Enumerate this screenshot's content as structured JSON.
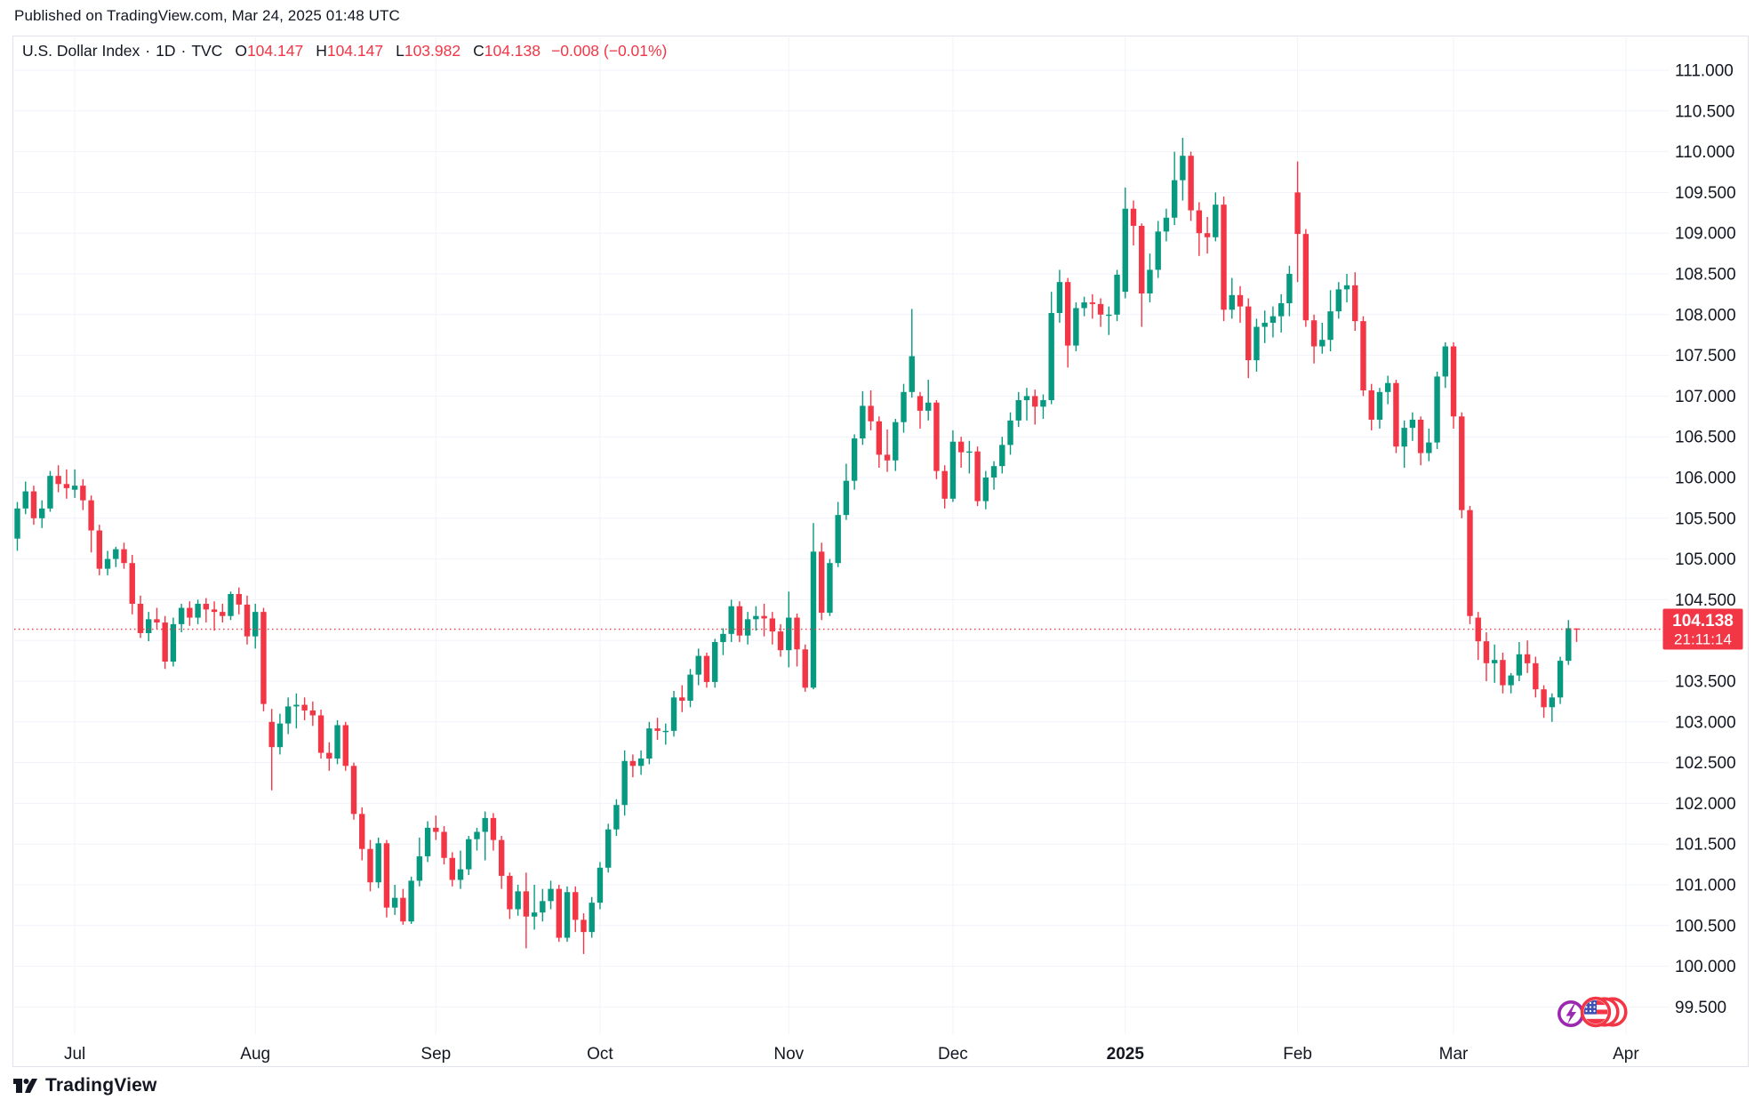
{
  "header": {
    "published": "Published on TradingView.com, Mar 24, 2025 01:48 UTC"
  },
  "legend": {
    "symbol": "U.S. Dollar Index",
    "separator": "·",
    "interval": "1D",
    "exchange": "TVC",
    "open_label": "O",
    "open_value": "104.147",
    "high_label": "H",
    "high_value": "104.147",
    "low_label": "L",
    "low_value": "103.982",
    "close_label": "C",
    "close_value": "104.138",
    "change": "−0.008 (−0.01%)"
  },
  "price_label": {
    "value": "104.138",
    "countdown": "21:11:14"
  },
  "footer": {
    "brand": "TradingView"
  },
  "colors": {
    "up": "#089981",
    "down": "#F23645",
    "current_price": "#F23645",
    "grid": "#F0F3FA",
    "border": "#E0E3EB",
    "text": "#131722",
    "label_text": "#ffffff",
    "logo_purple": "#9C27B0",
    "logo_red": "#F23645",
    "flag_blue": "#3F51B5"
  },
  "chart_data": {
    "type": "candlestick",
    "title": "U.S. Dollar Index",
    "interval": "1D",
    "exchange": "TVC",
    "x": "trading-day index starting 2024-06-20, ending 2025-03-24",
    "start_date": "2024-06-20",
    "end_date": "2025-03-24",
    "ylim": [
      99.25,
      111.4
    ],
    "grid": true,
    "legend_position": "top-left",
    "current_price": 104.138,
    "current_price_style": "dotted-red-line",
    "y_ticks": [
      "111.000",
      "110.500",
      "110.000",
      "109.500",
      "109.000",
      "108.500",
      "108.000",
      "107.500",
      "107.000",
      "106.500",
      "106.000",
      "105.500",
      "105.000",
      "104.500",
      "104.000",
      "103.500",
      "103.000",
      "102.500",
      "102.000",
      "101.500",
      "101.000",
      "100.500",
      "100.000",
      "99.500"
    ],
    "x_ticks": [
      {
        "label": "Jul",
        "index": 7
      },
      {
        "label": "Aug",
        "index": 29
      },
      {
        "label": "Sep",
        "index": 51
      },
      {
        "label": "Oct",
        "index": 71
      },
      {
        "label": "Nov",
        "index": 94
      },
      {
        "label": "Dec",
        "index": 114
      },
      {
        "label": "2025",
        "index": 135,
        "bold": true
      },
      {
        "label": "Feb",
        "index": 156
      },
      {
        "label": "Mar",
        "index": 175
      },
      {
        "label": "Apr",
        "index": 196
      }
    ],
    "ohlc": [
      [
        105.25,
        105.7,
        105.1,
        105.62
      ],
      [
        105.62,
        105.95,
        105.55,
        105.83
      ],
      [
        105.83,
        105.9,
        105.42,
        105.5
      ],
      [
        105.5,
        105.72,
        105.38,
        105.62
      ],
      [
        105.62,
        106.08,
        105.58,
        106.02
      ],
      [
        106.02,
        106.15,
        105.82,
        105.92
      ],
      [
        105.92,
        106.1,
        105.74,
        105.87
      ],
      [
        105.85,
        106.1,
        105.75,
        105.9
      ],
      [
        105.9,
        105.98,
        105.6,
        105.72
      ],
      [
        105.72,
        105.78,
        105.08,
        105.35
      ],
      [
        105.35,
        105.42,
        104.8,
        104.88
      ],
      [
        104.88,
        105.1,
        104.8,
        105.0
      ],
      [
        105.0,
        105.15,
        104.9,
        105.12
      ],
      [
        105.12,
        105.2,
        104.88,
        104.95
      ],
      [
        104.95,
        105.05,
        104.32,
        104.45
      ],
      [
        104.45,
        104.55,
        104.03,
        104.09
      ],
      [
        104.09,
        104.35,
        103.99,
        104.26
      ],
      [
        104.26,
        104.4,
        104.14,
        104.22
      ],
      [
        104.22,
        104.3,
        103.65,
        103.74
      ],
      [
        103.74,
        104.28,
        103.68,
        104.2
      ],
      [
        104.2,
        104.45,
        104.1,
        104.4
      ],
      [
        104.4,
        104.48,
        104.18,
        104.28
      ],
      [
        104.28,
        104.5,
        104.2,
        104.45
      ],
      [
        104.45,
        104.52,
        104.22,
        104.38
      ],
      [
        104.38,
        104.48,
        104.12,
        104.35
      ],
      [
        104.35,
        104.45,
        104.22,
        104.3
      ],
      [
        104.3,
        104.6,
        104.25,
        104.57
      ],
      [
        104.57,
        104.65,
        104.32,
        104.44
      ],
      [
        104.44,
        104.55,
        103.95,
        104.05
      ],
      [
        104.05,
        104.45,
        103.9,
        104.35
      ],
      [
        104.35,
        104.4,
        103.13,
        103.22
      ],
      [
        103.0,
        103.16,
        102.16,
        102.69
      ],
      [
        102.69,
        103.1,
        102.6,
        102.98
      ],
      [
        102.98,
        103.3,
        102.85,
        103.19
      ],
      [
        103.19,
        103.35,
        102.92,
        103.21
      ],
      [
        103.21,
        103.3,
        103.02,
        103.14
      ],
      [
        103.14,
        103.25,
        102.95,
        103.08
      ],
      [
        103.08,
        103.15,
        102.55,
        102.62
      ],
      [
        102.62,
        102.75,
        102.4,
        102.55
      ],
      [
        102.55,
        103.02,
        102.48,
        102.96
      ],
      [
        102.96,
        103.0,
        102.4,
        102.46
      ],
      [
        102.46,
        102.5,
        101.8,
        101.87
      ],
      [
        101.87,
        101.95,
        101.3,
        101.44
      ],
      [
        101.44,
        101.55,
        100.92,
        101.03
      ],
      [
        101.03,
        101.58,
        100.96,
        101.51
      ],
      [
        101.51,
        101.55,
        100.6,
        100.72
      ],
      [
        100.72,
        101.0,
        100.63,
        100.84
      ],
      [
        100.84,
        100.95,
        100.51,
        100.55
      ],
      [
        100.55,
        101.1,
        100.52,
        101.05
      ],
      [
        101.05,
        101.58,
        100.98,
        101.35
      ],
      [
        101.35,
        101.78,
        101.28,
        101.7
      ],
      [
        101.7,
        101.85,
        101.55,
        101.65
      ],
      [
        101.65,
        101.72,
        101.25,
        101.33
      ],
      [
        101.33,
        101.4,
        100.98,
        101.06
      ],
      [
        101.06,
        101.42,
        100.95,
        101.19
      ],
      [
        101.19,
        101.6,
        101.12,
        101.56
      ],
      [
        101.56,
        101.7,
        101.42,
        101.65
      ],
      [
        101.65,
        101.9,
        101.3,
        101.82
      ],
      [
        101.82,
        101.88,
        101.42,
        101.55
      ],
      [
        101.55,
        101.6,
        100.95,
        101.11
      ],
      [
        101.11,
        101.15,
        100.58,
        100.7
      ],
      [
        100.7,
        101.0,
        100.62,
        100.92
      ],
      [
        100.92,
        101.15,
        100.22,
        100.61
      ],
      [
        100.61,
        101.0,
        100.45,
        100.66
      ],
      [
        100.66,
        100.95,
        100.55,
        100.8
      ],
      [
        100.8,
        101.05,
        100.7,
        100.95
      ],
      [
        100.95,
        101.0,
        100.3,
        100.35
      ],
      [
        100.35,
        100.98,
        100.3,
        100.91
      ],
      [
        100.91,
        100.98,
        100.42,
        100.57
      ],
      [
        100.57,
        100.65,
        100.15,
        100.42
      ],
      [
        100.42,
        100.85,
        100.35,
        100.78
      ],
      [
        100.78,
        101.28,
        100.7,
        101.21
      ],
      [
        101.21,
        101.75,
        101.15,
        101.68
      ],
      [
        101.68,
        102.05,
        101.6,
        101.98
      ],
      [
        101.98,
        102.65,
        101.85,
        102.52
      ],
      [
        102.52,
        102.6,
        102.32,
        102.46
      ],
      [
        102.46,
        102.65,
        102.35,
        102.55
      ],
      [
        102.55,
        103.0,
        102.48,
        102.92
      ],
      [
        102.92,
        103.05,
        102.78,
        102.89
      ],
      [
        102.89,
        102.98,
        102.72,
        102.89
      ],
      [
        102.89,
        103.38,
        102.82,
        103.3
      ],
      [
        103.3,
        103.45,
        103.12,
        103.26
      ],
      [
        103.26,
        103.65,
        103.18,
        103.58
      ],
      [
        103.58,
        103.9,
        103.45,
        103.81
      ],
      [
        103.81,
        103.85,
        103.42,
        103.49
      ],
      [
        103.49,
        104.02,
        103.42,
        103.98
      ],
      [
        103.98,
        104.15,
        103.82,
        104.08
      ],
      [
        104.08,
        104.5,
        103.98,
        104.42
      ],
      [
        104.42,
        104.48,
        103.98,
        104.06
      ],
      [
        104.06,
        104.35,
        103.95,
        104.26
      ],
      [
        104.26,
        104.42,
        104.12,
        104.3
      ],
      [
        104.3,
        104.45,
        104.05,
        104.27
      ],
      [
        104.27,
        104.35,
        103.95,
        104.11
      ],
      [
        104.11,
        104.2,
        103.8,
        103.88
      ],
      [
        103.88,
        104.6,
        103.67,
        104.28
      ],
      [
        104.28,
        104.33,
        103.68,
        103.89
      ],
      [
        103.89,
        103.95,
        103.37,
        103.42
      ],
      [
        103.42,
        105.44,
        103.4,
        105.09
      ],
      [
        105.09,
        105.2,
        104.25,
        104.34
      ],
      [
        104.34,
        105.0,
        104.3,
        104.95
      ],
      [
        104.95,
        105.7,
        104.9,
        105.54
      ],
      [
        105.54,
        106.17,
        105.48,
        105.96
      ],
      [
        105.96,
        106.53,
        105.85,
        106.48
      ],
      [
        106.48,
        107.06,
        106.4,
        106.88
      ],
      [
        106.88,
        107.07,
        106.58,
        106.69
      ],
      [
        106.69,
        106.75,
        106.12,
        106.28
      ],
      [
        106.28,
        106.59,
        106.07,
        106.21
      ],
      [
        106.21,
        106.72,
        106.08,
        106.68
      ],
      [
        106.68,
        107.15,
        106.55,
        107.05
      ],
      [
        107.05,
        108.07,
        106.98,
        107.49
      ],
      [
        107.0,
        107.05,
        106.6,
        106.82
      ],
      [
        106.82,
        107.2,
        106.7,
        106.92
      ],
      [
        106.92,
        106.95,
        105.98,
        106.08
      ],
      [
        106.08,
        106.15,
        105.62,
        105.74
      ],
      [
        105.74,
        106.58,
        105.7,
        106.44
      ],
      [
        106.44,
        106.5,
        106.12,
        106.31
      ],
      [
        106.31,
        106.45,
        106.05,
        106.32
      ],
      [
        106.32,
        106.38,
        105.65,
        105.71
      ],
      [
        105.71,
        106.08,
        105.61,
        106.0
      ],
      [
        106.0,
        106.2,
        105.85,
        106.14
      ],
      [
        106.14,
        106.5,
        106.05,
        106.4
      ],
      [
        106.4,
        106.8,
        106.28,
        106.7
      ],
      [
        106.7,
        107.05,
        106.62,
        106.95
      ],
      [
        106.95,
        107.1,
        106.7,
        107.0
      ],
      [
        107.0,
        107.08,
        106.65,
        106.87
      ],
      [
        106.87,
        107.02,
        106.72,
        106.95
      ],
      [
        106.95,
        108.28,
        106.9,
        108.02
      ],
      [
        108.02,
        108.55,
        107.9,
        108.4
      ],
      [
        108.4,
        108.45,
        107.35,
        107.62
      ],
      [
        107.62,
        108.15,
        107.55,
        108.08
      ],
      [
        108.08,
        108.22,
        107.98,
        108.15
      ],
      [
        108.15,
        108.25,
        107.95,
        108.13
      ],
      [
        108.13,
        108.2,
        107.85,
        108.0
      ],
      [
        108.0,
        108.1,
        107.75,
        108.0
      ],
      [
        108.0,
        108.55,
        107.92,
        108.49
      ],
      [
        108.28,
        109.56,
        108.2,
        109.3
      ],
      [
        109.3,
        109.4,
        108.85,
        109.09
      ],
      [
        109.09,
        109.12,
        107.85,
        108.26
      ],
      [
        108.26,
        108.75,
        108.15,
        108.55
      ],
      [
        108.55,
        109.15,
        108.45,
        109.02
      ],
      [
        109.02,
        109.3,
        108.9,
        109.19
      ],
      [
        109.19,
        110.0,
        109.1,
        109.65
      ],
      [
        109.65,
        110.17,
        109.4,
        109.95
      ],
      [
        109.95,
        110.0,
        109.15,
        109.28
      ],
      [
        109.28,
        109.38,
        108.72,
        109.0
      ],
      [
        109.0,
        109.2,
        108.75,
        108.95
      ],
      [
        108.95,
        109.5,
        108.9,
        109.35
      ],
      [
        109.35,
        109.45,
        107.92,
        108.06
      ],
      [
        108.06,
        108.45,
        107.95,
        108.24
      ],
      [
        108.24,
        108.35,
        107.9,
        108.1
      ],
      [
        108.1,
        108.2,
        107.22,
        107.44
      ],
      [
        107.44,
        107.95,
        107.3,
        107.85
      ],
      [
        107.85,
        108.05,
        107.65,
        107.9
      ],
      [
        107.9,
        108.1,
        107.72,
        107.98
      ],
      [
        107.98,
        108.25,
        107.78,
        108.14
      ],
      [
        108.14,
        108.6,
        107.98,
        108.5
      ],
      [
        109.5,
        109.88,
        108.4,
        108.99
      ],
      [
        108.99,
        109.05,
        107.85,
        107.93
      ],
      [
        107.93,
        108.0,
        107.4,
        107.61
      ],
      [
        107.61,
        107.9,
        107.52,
        107.69
      ],
      [
        107.69,
        108.3,
        107.55,
        108.04
      ],
      [
        108.04,
        108.4,
        107.95,
        108.31
      ],
      [
        108.31,
        108.5,
        108.15,
        108.36
      ],
      [
        108.36,
        108.52,
        107.8,
        107.92
      ],
      [
        107.92,
        107.98,
        107.0,
        107.07
      ],
      [
        107.07,
        107.15,
        106.58,
        106.71
      ],
      [
        106.71,
        107.1,
        106.6,
        107.05
      ],
      [
        107.05,
        107.25,
        106.9,
        107.16
      ],
      [
        107.16,
        107.2,
        106.3,
        106.38
      ],
      [
        106.38,
        106.7,
        106.12,
        106.61
      ],
      [
        106.61,
        106.8,
        106.45,
        106.71
      ],
      [
        106.71,
        106.75,
        106.15,
        106.3
      ],
      [
        106.3,
        106.6,
        106.2,
        106.43
      ],
      [
        106.43,
        107.3,
        106.35,
        107.24
      ],
      [
        107.24,
        107.66,
        107.1,
        107.61
      ],
      [
        107.61,
        107.66,
        106.6,
        106.75
      ],
      [
        106.75,
        106.8,
        105.5,
        105.6
      ],
      [
        105.6,
        105.65,
        104.2,
        104.3
      ],
      [
        104.28,
        104.35,
        103.76,
        103.99
      ],
      [
        103.99,
        104.1,
        103.5,
        103.72
      ],
      [
        103.72,
        103.95,
        103.48,
        103.76
      ],
      [
        103.76,
        103.85,
        103.35,
        103.45
      ],
      [
        103.45,
        103.6,
        103.35,
        103.57
      ],
      [
        103.57,
        103.98,
        103.5,
        103.83
      ],
      [
        103.83,
        104.0,
        103.6,
        103.72
      ],
      [
        103.72,
        103.8,
        103.3,
        103.4
      ],
      [
        103.4,
        103.45,
        103.05,
        103.18
      ],
      [
        103.18,
        103.35,
        103.0,
        103.3
      ],
      [
        103.3,
        103.8,
        103.22,
        103.75
      ],
      [
        103.75,
        104.25,
        103.7,
        104.15
      ],
      [
        104.147,
        104.147,
        103.982,
        104.138
      ]
    ]
  }
}
